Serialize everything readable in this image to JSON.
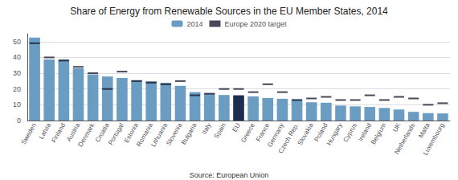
{
  "chart_data": {
    "type": "bar",
    "title": "Share of Energy from Renewable Sources in the EU Member States, 2014",
    "source": "Source: European Union",
    "categories": [
      "Sweden",
      "Latvia",
      "Finland",
      "Austria",
      "Denmark",
      "Croatia",
      "Portugal",
      "Estonia",
      "Romania",
      "Lithuania",
      "Slovenia",
      "Bulgaria",
      "Italy",
      "Spain",
      "EU",
      "Greece",
      "France",
      "Germany",
      "Czech Rep.",
      "Slovakia",
      "Poland",
      "Hungary",
      "Cyprus",
      "Ireland",
      "Belgium",
      "UK",
      "Netherlands",
      "Malta",
      "Luxembourg"
    ],
    "series": [
      {
        "name": "2014",
        "type": "bar",
        "color": "#6b9dc2",
        "colors": [
          "#6b9dc2",
          "#6b9dc2",
          "#6b9dc2",
          "#6b9dc2",
          "#6b9dc2",
          "#6b9dc2",
          "#6b9dc2",
          "#6b9dc2",
          "#6b9dc2",
          "#6b9dc2",
          "#6b9dc2",
          "#6b9dc2",
          "#6b9dc2",
          "#6b9dc2",
          "#1c2d4f",
          "#6b9dc2",
          "#6b9dc2",
          "#6b9dc2",
          "#6b9dc2",
          "#6b9dc2",
          "#6b9dc2",
          "#6b9dc2",
          "#6b9dc2",
          "#6b9dc2",
          "#6b9dc2",
          "#6b9dc2",
          "#6b9dc2",
          "#6b9dc2",
          "#6b9dc2"
        ],
        "values": [
          52.6,
          38.7,
          38.7,
          33.1,
          29.2,
          27.9,
          27.0,
          25.6,
          24.9,
          23.9,
          22.0,
          18.0,
          17.1,
          16.2,
          16.0,
          15.3,
          14.3,
          13.8,
          13.4,
          11.6,
          11.3,
          9.5,
          9.0,
          8.6,
          8.0,
          7.0,
          5.5,
          4.7,
          4.5
        ]
      },
      {
        "name": "Europe 2020 target",
        "type": "scatter",
        "marker": "dash",
        "color": "#1a1a2e",
        "values": [
          49.0,
          40.0,
          38.0,
          34.0,
          30.0,
          20.0,
          31.0,
          25.0,
          24.0,
          23.0,
          25.0,
          16.0,
          17.0,
          20.0,
          20.0,
          18.0,
          23.0,
          18.0,
          13.0,
          14.0,
          15.0,
          13.0,
          13.0,
          16.0,
          13.0,
          15.0,
          14.0,
          10.0,
          11.0
        ]
      }
    ],
    "ylim": [
      0,
      55
    ],
    "yticks": [
      0,
      10,
      20,
      30,
      40,
      50
    ],
    "grid": true,
    "legend": "top"
  }
}
